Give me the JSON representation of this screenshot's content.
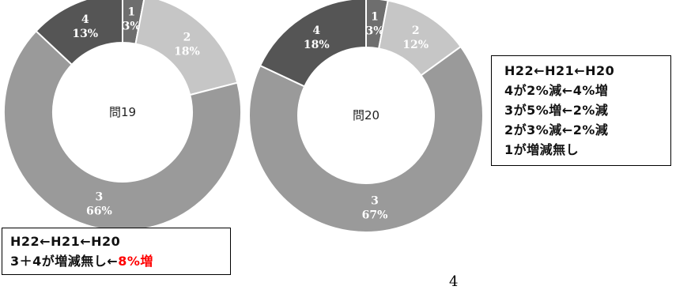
{
  "chart_data": [
    {
      "type": "pie",
      "center_label": "問19",
      "categories": [
        "1",
        "2",
        "3",
        "4"
      ],
      "values": [
        3,
        18,
        66,
        13
      ],
      "value_labels": [
        "3%",
        "18%",
        "66%",
        "13%"
      ],
      "colors": [
        "#6e6e6e",
        "#c6c6c6",
        "#9a9a9a",
        "#555555"
      ]
    },
    {
      "type": "pie",
      "center_label": "問20",
      "categories": [
        "1",
        "2",
        "3",
        "4"
      ],
      "values": [
        3,
        12,
        67,
        18
      ],
      "value_labels": [
        "3%",
        "12%",
        "67%",
        "18%"
      ],
      "colors": [
        "#6e6e6e",
        "#c6c6c6",
        "#9a9a9a",
        "#555555"
      ]
    }
  ],
  "right_box": {
    "lines": [
      "H22←H21←H20",
      "4が2%減←4%増",
      "3が5%増←2%減",
      "2が3%減←2%減",
      "1が増減無し"
    ]
  },
  "left_box": {
    "line1": "H22←H21←H20",
    "line2_prefix": "3＋4が増減無し←",
    "line2_highlight": "8%増",
    "highlight_color": "#ff0000"
  },
  "page_number": "4"
}
